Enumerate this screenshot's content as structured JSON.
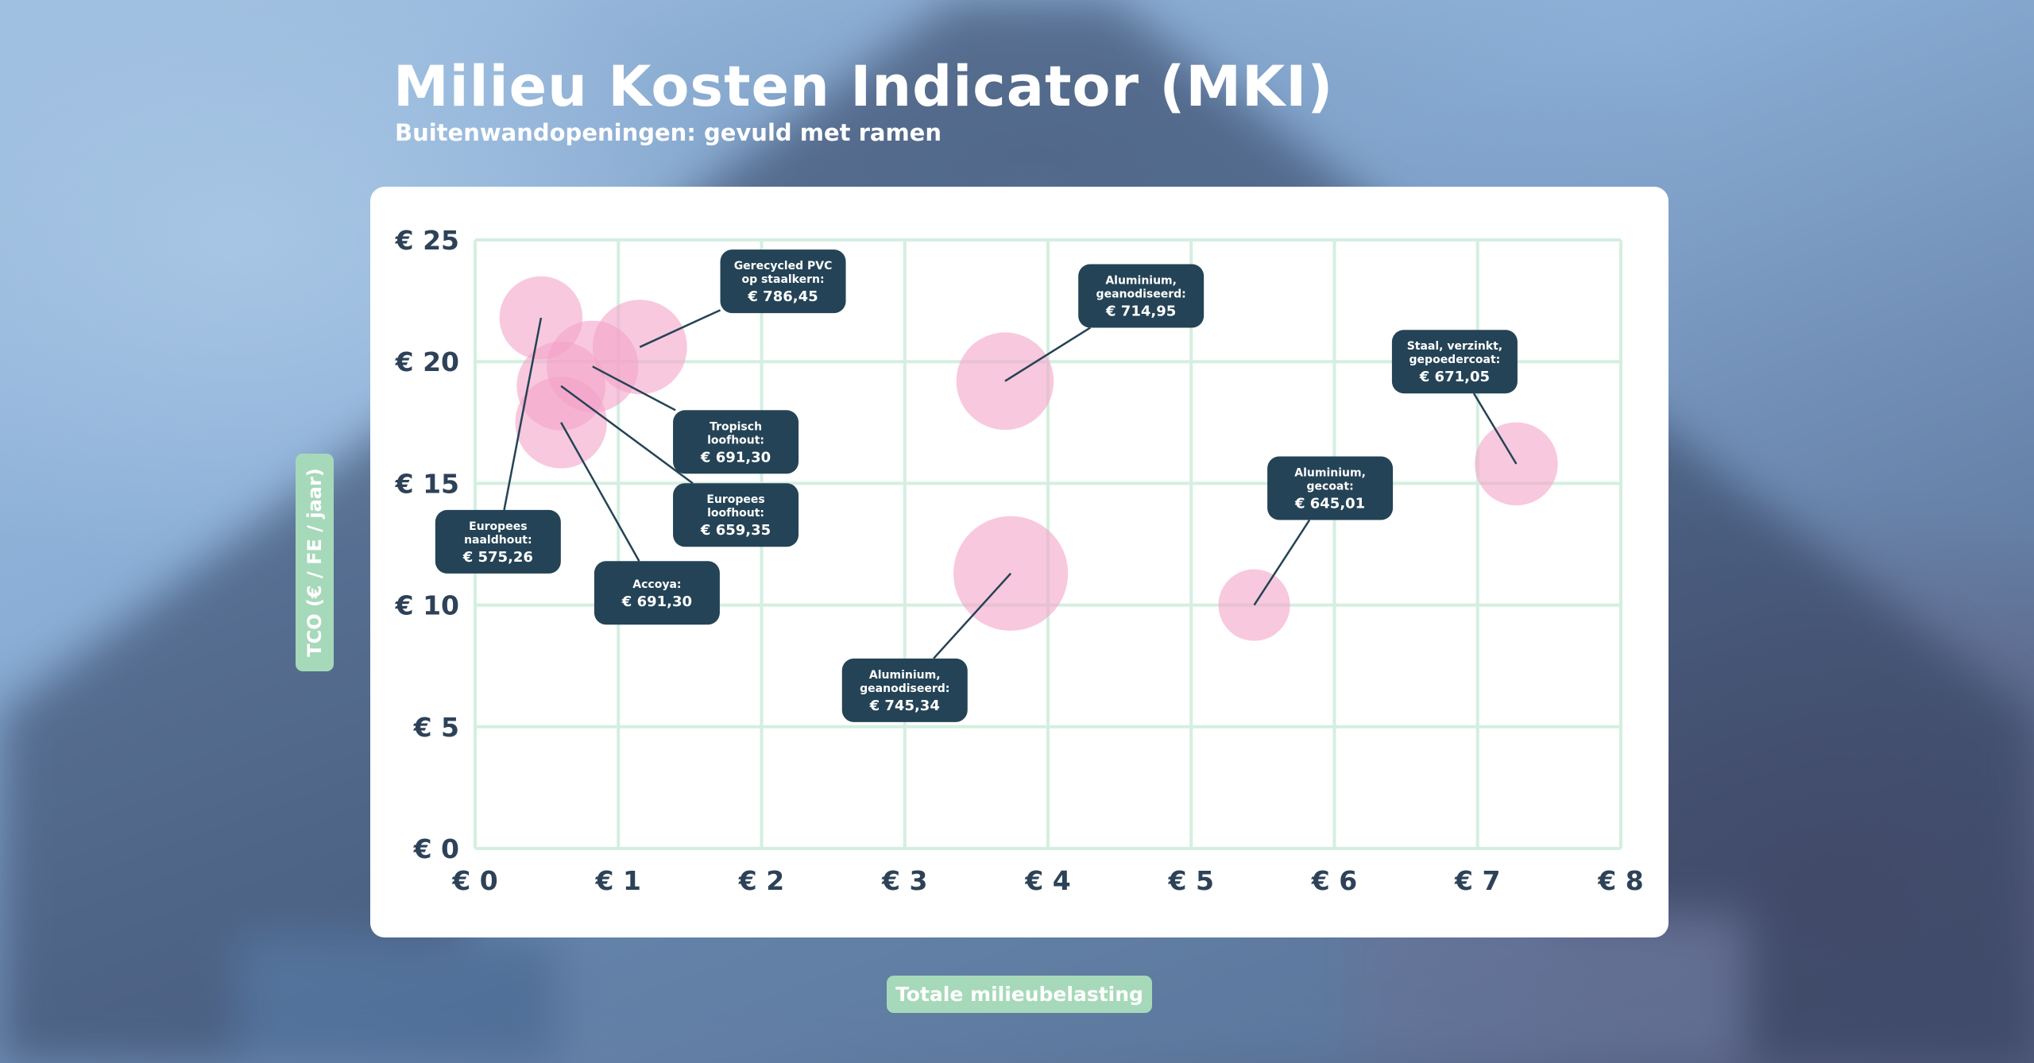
{
  "page": {
    "title": "Milieu Kosten Indicator (MKI)",
    "subtitle": "Buitenwandopeningen: gevuld met ramen"
  },
  "colors": {
    "bubble": "#f4a3c8",
    "label_box": "#244356",
    "grid": "#d4efe0",
    "axis_text": "#2d4258",
    "axis_title_bg": "#a6d9b9"
  },
  "chart_data": {
    "type": "scatter",
    "title": "Milieu Kosten Indicator (MKI)",
    "subtitle": "Buitenwandopeningen: gevuld met ramen",
    "xlabel": "Totale milieubelasting",
    "ylabel": "TCO (€ / FE / jaar)",
    "xlim": [
      0,
      8
    ],
    "ylim": [
      0,
      25
    ],
    "x_ticks": [
      0,
      1,
      2,
      3,
      4,
      5,
      6,
      7,
      8
    ],
    "y_ticks": [
      0,
      5,
      10,
      15,
      20,
      25
    ],
    "x_tick_labels": [
      "€ 0",
      "€ 1",
      "€ 2",
      "€ 3",
      "€ 4",
      "€ 5",
      "€ 6",
      "€ 7",
      "€ 8"
    ],
    "y_tick_labels": [
      "€ 0",
      "€ 5",
      "€ 10",
      "€ 15",
      "€ 20",
      "€ 25"
    ],
    "grid": true,
    "legend": "none",
    "points": [
      {
        "x": 0.46,
        "y": 21.8,
        "r": 0.29,
        "label_lines": [
          "Europees",
          "naaldhout:"
        ],
        "value": "€ 575,26",
        "label_x": 0.16,
        "label_y": 12.6
      },
      {
        "x": 1.15,
        "y": 20.6,
        "r": 0.33,
        "label_lines": [
          "Gerecycled PVC",
          "op staalkern:"
        ],
        "value": "€ 786,45",
        "label_x": 2.15,
        "label_y": 23.3
      },
      {
        "x": 0.82,
        "y": 19.8,
        "r": 0.32,
        "label_lines": [
          "Tropisch",
          "loofhout:"
        ],
        "value": "€ 691,30",
        "label_x": 1.82,
        "label_y": 16.7
      },
      {
        "x": 0.6,
        "y": 19.0,
        "r": 0.31,
        "label_lines": [
          "Europees",
          "loofhout:"
        ],
        "value": "€ 659,35",
        "label_x": 1.82,
        "label_y": 13.7
      },
      {
        "x": 0.6,
        "y": 17.5,
        "r": 0.32,
        "label_lines": [
          "Accoya:"
        ],
        "value": "€ 691,30",
        "label_x": 1.27,
        "label_y": 10.5
      },
      {
        "x": 3.7,
        "y": 19.2,
        "r": 0.34,
        "label_lines": [
          "Aluminium,",
          "geanodiseerd:"
        ],
        "value": "€ 714,95",
        "label_x": 4.65,
        "label_y": 22.7
      },
      {
        "x": 3.74,
        "y": 11.3,
        "r": 0.4,
        "label_lines": [
          "Aluminium,",
          "geanodiseerd:"
        ],
        "value": "€ 745,34",
        "label_x": 3.0,
        "label_y": 6.5
      },
      {
        "x": 5.44,
        "y": 10.0,
        "r": 0.25,
        "label_lines": [
          "Aluminium,",
          "gecoat:"
        ],
        "value": "€ 645,01",
        "label_x": 5.97,
        "label_y": 14.8
      },
      {
        "x": 7.27,
        "y": 15.8,
        "r": 0.29,
        "label_lines": [
          "Staal, verzinkt,",
          "gepoedercoat:"
        ],
        "value": "€ 671,05",
        "label_x": 6.84,
        "label_y": 20.0
      }
    ]
  }
}
